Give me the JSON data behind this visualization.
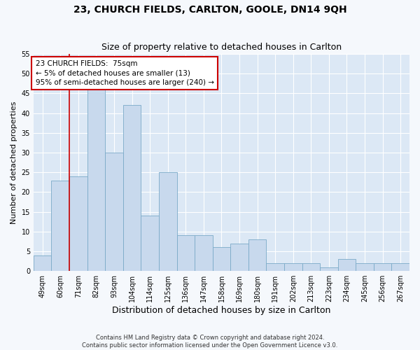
{
  "title": "23, CHURCH FIELDS, CARLTON, GOOLE, DN14 9QH",
  "subtitle": "Size of property relative to detached houses in Carlton",
  "xlabel": "Distribution of detached houses by size in Carlton",
  "ylabel": "Number of detached properties",
  "categories": [
    "49sqm",
    "60sqm",
    "71sqm",
    "82sqm",
    "93sqm",
    "104sqm",
    "114sqm",
    "125sqm",
    "136sqm",
    "147sqm",
    "158sqm",
    "169sqm",
    "180sqm",
    "191sqm",
    "202sqm",
    "213sqm",
    "223sqm",
    "234sqm",
    "245sqm",
    "256sqm",
    "267sqm"
  ],
  "values": [
    4,
    23,
    24,
    46,
    30,
    42,
    14,
    25,
    9,
    9,
    6,
    7,
    8,
    2,
    2,
    2,
    1,
    3,
    2,
    2,
    2
  ],
  "bar_color": "#c8d9ed",
  "bar_edge_color": "#7aaac8",
  "vline_x": 1.5,
  "vline_color": "#cc0000",
  "ylim": [
    0,
    55
  ],
  "yticks": [
    0,
    5,
    10,
    15,
    20,
    25,
    30,
    35,
    40,
    45,
    50,
    55
  ],
  "annotation_text": "23 CHURCH FIELDS:  75sqm\n← 5% of detached houses are smaller (13)\n95% of semi-detached houses are larger (240) →",
  "annotation_box_color": "#ffffff",
  "annotation_box_edge": "#cc0000",
  "footer1": "Contains HM Land Registry data © Crown copyright and database right 2024.",
  "footer2": "Contains public sector information licensed under the Open Government Licence v3.0.",
  "background_color": "#dce8f5",
  "fig_background_color": "#f5f8fc",
  "grid_color": "#ffffff",
  "title_fontsize": 10,
  "subtitle_fontsize": 9,
  "tick_fontsize": 7,
  "ylabel_fontsize": 8,
  "xlabel_fontsize": 9,
  "annotation_fontsize": 7.5,
  "footer_fontsize": 6
}
